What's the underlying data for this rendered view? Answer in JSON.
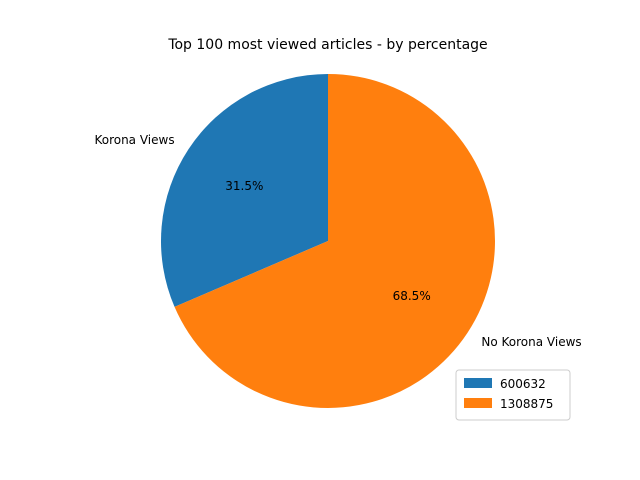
{
  "chart_data": {
    "type": "pie",
    "title": "Top 100 most viewed articles - by percentage",
    "slices": [
      {
        "label": "Korona Views",
        "value": 600632,
        "pct_label": "31.5%",
        "color": "#1f77b4"
      },
      {
        "label": "No Korona Views",
        "value": 1308875,
        "pct_label": "68.5%",
        "color": "#ff7f0e"
      }
    ],
    "start_angle_deg": 90,
    "direction": "counterclockwise",
    "legend": {
      "placement": "lower-right",
      "entries": [
        "600632",
        "1308875"
      ]
    }
  }
}
